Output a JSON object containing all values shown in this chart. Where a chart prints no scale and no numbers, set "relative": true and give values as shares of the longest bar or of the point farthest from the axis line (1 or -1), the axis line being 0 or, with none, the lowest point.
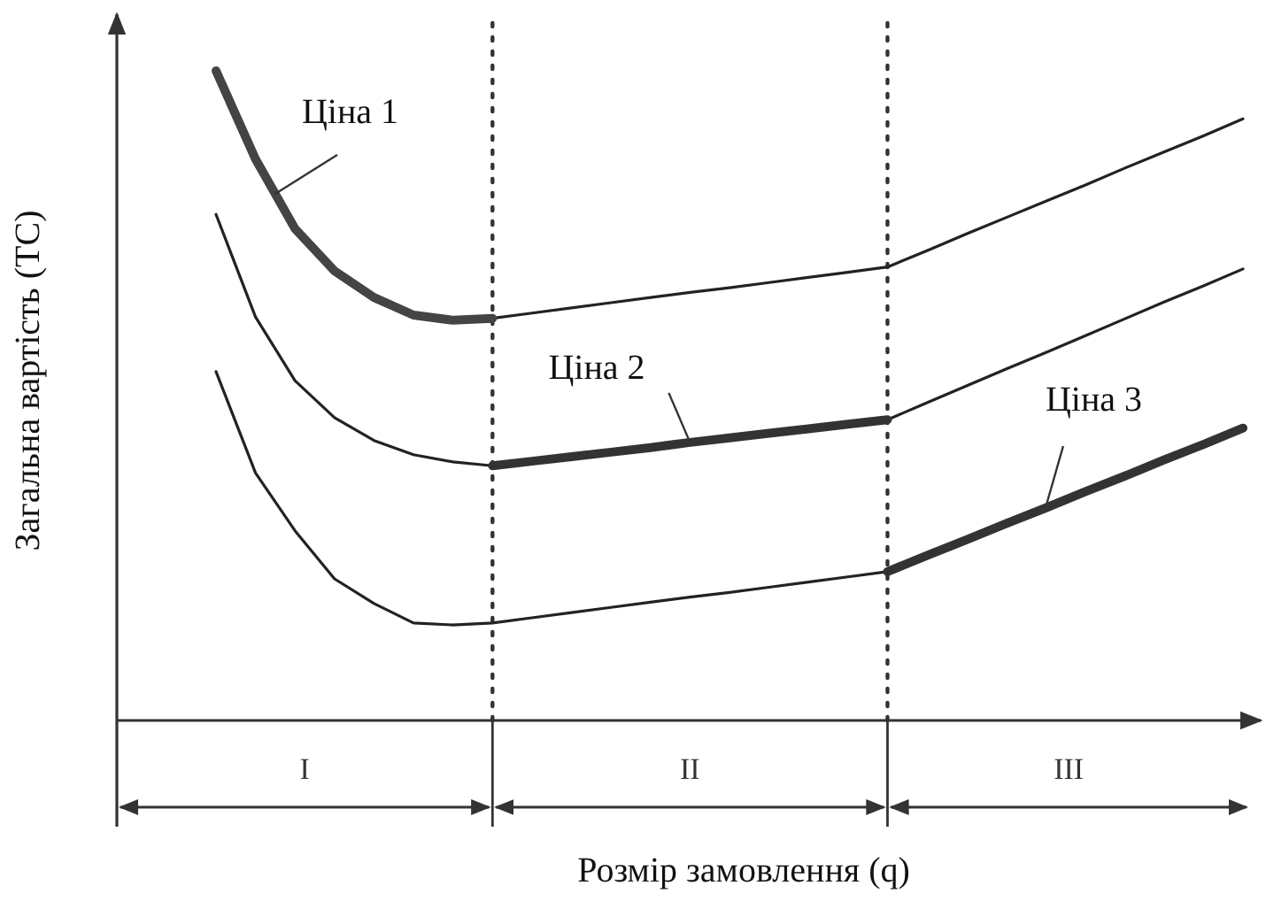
{
  "chart_data": {
    "type": "line",
    "relative": true,
    "xlabel": "Розмір замовлення (q)",
    "ylabel": "Загальна вартість (TC)",
    "categories": [
      null,
      null,
      null,
      null,
      null,
      null,
      null,
      null,
      null,
      null,
      null,
      null,
      null,
      null,
      null,
      null,
      null,
      null,
      null,
      null,
      null,
      null,
      null,
      null,
      null,
      null,
      null
    ],
    "series": [
      {
        "color": "#222222",
        "values": [
          1.0,
          0.864,
          0.757,
          0.692,
          0.651,
          0.624,
          0.616,
          0.619,
          0.627,
          0.635,
          0.643,
          0.651,
          0.659,
          0.666,
          0.674,
          0.682,
          0.69,
          0.698,
          0.723,
          0.749,
          0.774,
          0.799,
          0.824,
          0.85,
          0.875,
          0.9,
          0.926
        ]
      },
      {
        "color": "#222222",
        "values": [
          0.779,
          0.621,
          0.523,
          0.466,
          0.431,
          0.409,
          0.398,
          0.392,
          0.399,
          0.406,
          0.413,
          0.42,
          0.428,
          0.435,
          0.442,
          0.449,
          0.456,
          0.463,
          0.489,
          0.515,
          0.541,
          0.566,
          0.592,
          0.618,
          0.644,
          0.669,
          0.695
        ]
      },
      {
        "color": "#222222",
        "values": [
          0.537,
          0.381,
          0.292,
          0.218,
          0.18,
          0.15,
          0.147,
          0.15,
          0.158,
          0.166,
          0.174,
          0.182,
          0.19,
          0.197,
          0.205,
          0.213,
          0.221,
          0.229,
          0.254,
          0.278,
          0.303,
          0.327,
          0.352,
          0.376,
          0.401,
          0.425,
          0.45
        ]
      },
      {
        "name": "Ціна 1",
        "color": "#444444",
        "values": [
          1.0,
          0.864,
          0.757,
          0.692,
          0.651,
          0.624,
          0.616,
          0.619,
          null,
          null,
          null,
          null,
          null,
          null,
          null,
          null,
          null,
          null,
          null,
          null,
          null,
          null,
          null,
          null,
          null,
          null,
          null
        ]
      },
      {
        "name": "Ціна 2",
        "color": "#333333",
        "values": [
          null,
          null,
          null,
          null,
          null,
          null,
          null,
          0.392,
          0.399,
          0.406,
          0.413,
          0.42,
          0.428,
          0.435,
          0.442,
          0.449,
          0.456,
          0.463,
          null,
          null,
          null,
          null,
          null,
          null,
          null,
          null,
          null
        ]
      },
      {
        "name": "Ціна 3",
        "color": "#333333",
        "values": [
          null,
          null,
          null,
          null,
          null,
          null,
          null,
          null,
          null,
          null,
          null,
          null,
          null,
          null,
          null,
          null,
          null,
          0.229,
          0.254,
          0.278,
          0.303,
          0.327,
          0.352,
          0.376,
          0.401,
          0.425,
          0.45
        ]
      }
    ],
    "annotations": [
      "I",
      "II",
      "III"
    ]
  }
}
